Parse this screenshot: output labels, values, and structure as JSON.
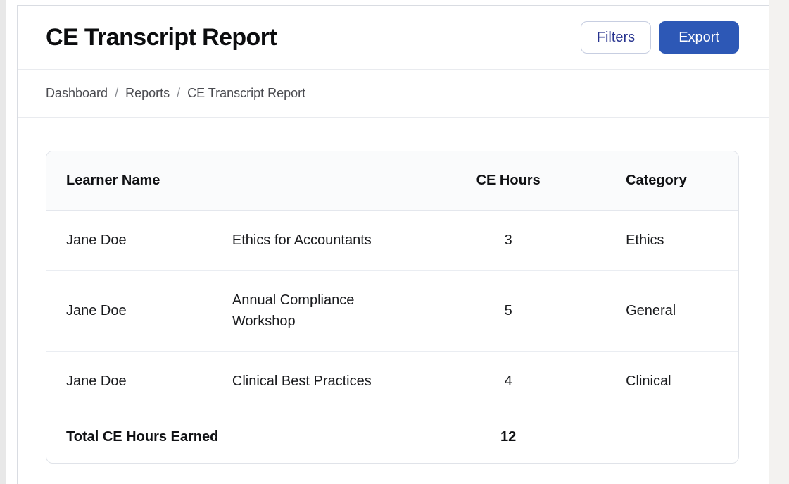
{
  "page": {
    "title": "CE Transcript Report"
  },
  "toolbar": {
    "filters_label": "Filters",
    "export_label": "Export"
  },
  "breadcrumb": {
    "separator": "/",
    "items": [
      "Dashboard",
      "Reports",
      "CE Transcript Report"
    ]
  },
  "table": {
    "columns": {
      "learner": "Learner Name",
      "course": "",
      "hours": "CE Hours",
      "category": "Category"
    },
    "rows": [
      {
        "learner": "Jane Doe",
        "course": "Ethics for Accountants",
        "hours": "3",
        "category": "Ethics"
      },
      {
        "learner": "Jane Doe",
        "course": "Annual Compliance Workshop",
        "hours": "5",
        "category": "General"
      },
      {
        "learner": "Jane Doe",
        "course": "Clinical Best Practices",
        "hours": "4",
        "category": "Clinical"
      }
    ],
    "footer": {
      "label": "Total CE Hours Earned",
      "total": "12"
    }
  },
  "colors": {
    "primary_button": "#2d58b6",
    "filters_text": "#27338f",
    "card_border": "#e0e3e9",
    "row_divider": "#eaedf2",
    "header_bg": "#fafbfc",
    "breadcrumb_text": "#4a4b50"
  }
}
